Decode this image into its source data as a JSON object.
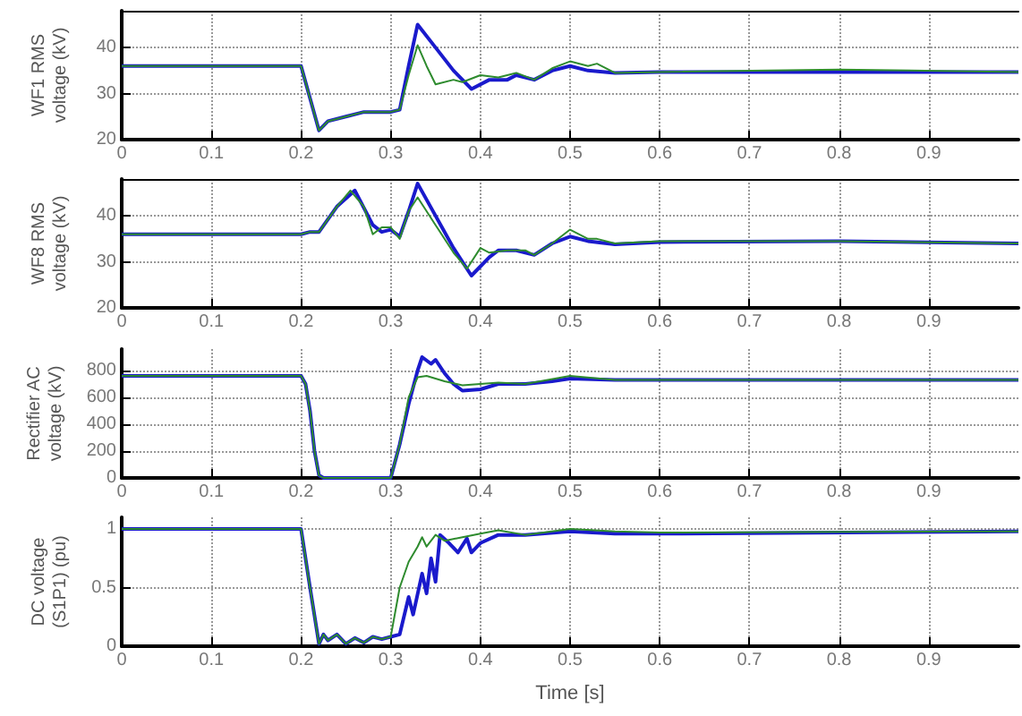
{
  "chart_data": [
    {
      "type": "line",
      "ylabel": "WF1 RMS voltage (kV)",
      "xlim": [
        0,
        1
      ],
      "xticks": [
        0,
        0.1,
        0.2,
        0.3,
        0.4,
        0.5,
        0.6,
        0.7,
        0.8,
        0.9
      ],
      "ylim": [
        20,
        48
      ],
      "yticks": [
        20,
        30,
        40
      ],
      "grid": true,
      "series": [
        {
          "color": "#1a1acc",
          "x": [
            0,
            0.2,
            0.21,
            0.22,
            0.23,
            0.25,
            0.27,
            0.3,
            0.31,
            0.32,
            0.33,
            0.35,
            0.37,
            0.39,
            0.41,
            0.43,
            0.44,
            0.46,
            0.48,
            0.5,
            0.52,
            0.55,
            0.6,
            0.8,
            1
          ],
          "values": [
            36,
            36,
            29,
            22,
            24,
            25,
            26,
            26,
            26.5,
            36,
            45,
            40,
            35,
            31,
            33,
            33,
            34,
            33,
            35,
            36,
            35,
            34.5,
            34.7,
            34.7,
            34.7
          ]
        },
        {
          "color": "#2e8b2e",
          "x": [
            0,
            0.2,
            0.21,
            0.22,
            0.23,
            0.25,
            0.27,
            0.3,
            0.31,
            0.32,
            0.33,
            0.34,
            0.35,
            0.37,
            0.38,
            0.4,
            0.42,
            0.44,
            0.46,
            0.48,
            0.5,
            0.52,
            0.53,
            0.55,
            0.6,
            0.8,
            1
          ],
          "values": [
            36,
            36,
            29,
            22,
            24,
            25,
            26,
            26,
            26.5,
            34,
            40.5,
            36,
            32,
            33,
            32.5,
            34,
            33.5,
            34.5,
            33,
            35.5,
            37,
            36,
            36.5,
            34.5,
            34.7,
            35.2,
            34.7
          ]
        }
      ]
    },
    {
      "type": "line",
      "ylabel": "WF8 RMS voltage (kV)",
      "xlim": [
        0,
        1
      ],
      "xticks": [
        0,
        0.1,
        0.2,
        0.3,
        0.4,
        0.5,
        0.6,
        0.7,
        0.8,
        0.9
      ],
      "ylim": [
        20,
        48
      ],
      "yticks": [
        20,
        30,
        40
      ],
      "grid": true,
      "series": [
        {
          "color": "#1a1acc",
          "x": [
            0,
            0.2,
            0.21,
            0.22,
            0.24,
            0.26,
            0.28,
            0.29,
            0.3,
            0.31,
            0.32,
            0.33,
            0.35,
            0.37,
            0.39,
            0.41,
            0.42,
            0.44,
            0.46,
            0.48,
            0.5,
            0.52,
            0.55,
            0.6,
            0.8,
            1
          ],
          "values": [
            36,
            36,
            36.5,
            36.5,
            42,
            45.5,
            38,
            36.5,
            37,
            35.5,
            41,
            47,
            40,
            33,
            27,
            31,
            32.5,
            32.5,
            31.5,
            34,
            35.5,
            34.5,
            33.8,
            34.3,
            34.5,
            34
          ]
        },
        {
          "color": "#2e8b2e",
          "x": [
            0,
            0.2,
            0.21,
            0.22,
            0.24,
            0.255,
            0.27,
            0.28,
            0.29,
            0.3,
            0.31,
            0.32,
            0.33,
            0.35,
            0.37,
            0.385,
            0.4,
            0.41,
            0.43,
            0.45,
            0.46,
            0.48,
            0.5,
            0.52,
            0.53,
            0.55,
            0.6,
            0.8,
            1
          ],
          "values": [
            36,
            36,
            36.5,
            36.5,
            42,
            45.5,
            42,
            36,
            37.5,
            37.5,
            35,
            41,
            44,
            38,
            32,
            28.5,
            33,
            32,
            32.5,
            32.5,
            31.5,
            34,
            37,
            35,
            35,
            34,
            34.5,
            34.5,
            34
          ]
        }
      ]
    },
    {
      "type": "line",
      "ylabel": "Rectifier AC voltage (kV)",
      "xlim": [
        0,
        1
      ],
      "xticks": [
        0,
        0.1,
        0.2,
        0.3,
        0.4,
        0.5,
        0.6,
        0.7,
        0.8,
        0.9
      ],
      "ylim": [
        0,
        960
      ],
      "yticks": [
        0,
        200,
        400,
        600,
        800
      ],
      "grid": true,
      "series": [
        {
          "color": "#1a1acc",
          "x": [
            0,
            0.2,
            0.205,
            0.21,
            0.215,
            0.22,
            0.225,
            0.3,
            0.31,
            0.32,
            0.33,
            0.335,
            0.345,
            0.35,
            0.36,
            0.37,
            0.38,
            0.4,
            0.42,
            0.45,
            0.48,
            0.5,
            0.55,
            1
          ],
          "values": [
            760,
            760,
            700,
            500,
            200,
            20,
            0,
            0,
            250,
            550,
            800,
            900,
            850,
            880,
            780,
            700,
            650,
            660,
            700,
            700,
            720,
            740,
            730,
            730
          ]
        },
        {
          "color": "#2e8b2e",
          "x": [
            0,
            0.2,
            0.205,
            0.21,
            0.215,
            0.22,
            0.225,
            0.3,
            0.31,
            0.32,
            0.33,
            0.34,
            0.36,
            0.38,
            0.4,
            0.42,
            0.45,
            0.5,
            0.55,
            1
          ],
          "values": [
            760,
            760,
            700,
            500,
            200,
            20,
            0,
            0,
            250,
            600,
            750,
            760,
            720,
            690,
            700,
            710,
            700,
            760,
            730,
            730
          ]
        }
      ]
    },
    {
      "type": "line",
      "ylabel": "DC voltage (S1P1) (pu)",
      "xlabel": "Time [s]",
      "xlim": [
        0,
        1
      ],
      "xticks": [
        0,
        0.1,
        0.2,
        0.3,
        0.4,
        0.5,
        0.6,
        0.7,
        0.8,
        0.9
      ],
      "ylim": [
        0,
        1.1
      ],
      "yticks": [
        0,
        0.5,
        1
      ],
      "grid": true,
      "series": [
        {
          "color": "#1a1acc",
          "x": [
            0,
            0.2,
            0.21,
            0.22,
            0.225,
            0.23,
            0.24,
            0.25,
            0.26,
            0.27,
            0.28,
            0.29,
            0.3,
            0.31,
            0.32,
            0.325,
            0.335,
            0.34,
            0.345,
            0.35,
            0.355,
            0.365,
            0.375,
            0.385,
            0.39,
            0.4,
            0.42,
            0.45,
            0.5,
            0.55,
            0.6,
            1
          ],
          "values": [
            1,
            1,
            0.5,
            0.02,
            0.1,
            0.05,
            0.1,
            0.02,
            0.07,
            0.03,
            0.08,
            0.06,
            0.08,
            0.1,
            0.42,
            0.27,
            0.62,
            0.45,
            0.75,
            0.55,
            0.95,
            0.88,
            0.8,
            0.92,
            0.8,
            0.88,
            0.95,
            0.95,
            0.98,
            0.96,
            0.96,
            0.98
          ]
        },
        {
          "color": "#2e8b2e",
          "x": [
            0,
            0.2,
            0.21,
            0.22,
            0.225,
            0.23,
            0.24,
            0.25,
            0.26,
            0.27,
            0.28,
            0.29,
            0.3,
            0.31,
            0.32,
            0.33,
            0.335,
            0.34,
            0.35,
            0.36,
            0.38,
            0.4,
            0.42,
            0.45,
            0.5,
            0.55,
            0.6,
            1
          ],
          "values": [
            1,
            1,
            0.5,
            0.02,
            0.1,
            0.05,
            0.1,
            0.02,
            0.07,
            0.03,
            0.08,
            0.06,
            0.08,
            0.5,
            0.72,
            0.85,
            0.93,
            0.85,
            0.95,
            0.9,
            0.93,
            0.96,
            0.99,
            0.95,
            1,
            0.98,
            0.97,
            0.98
          ]
        }
      ]
    }
  ]
}
